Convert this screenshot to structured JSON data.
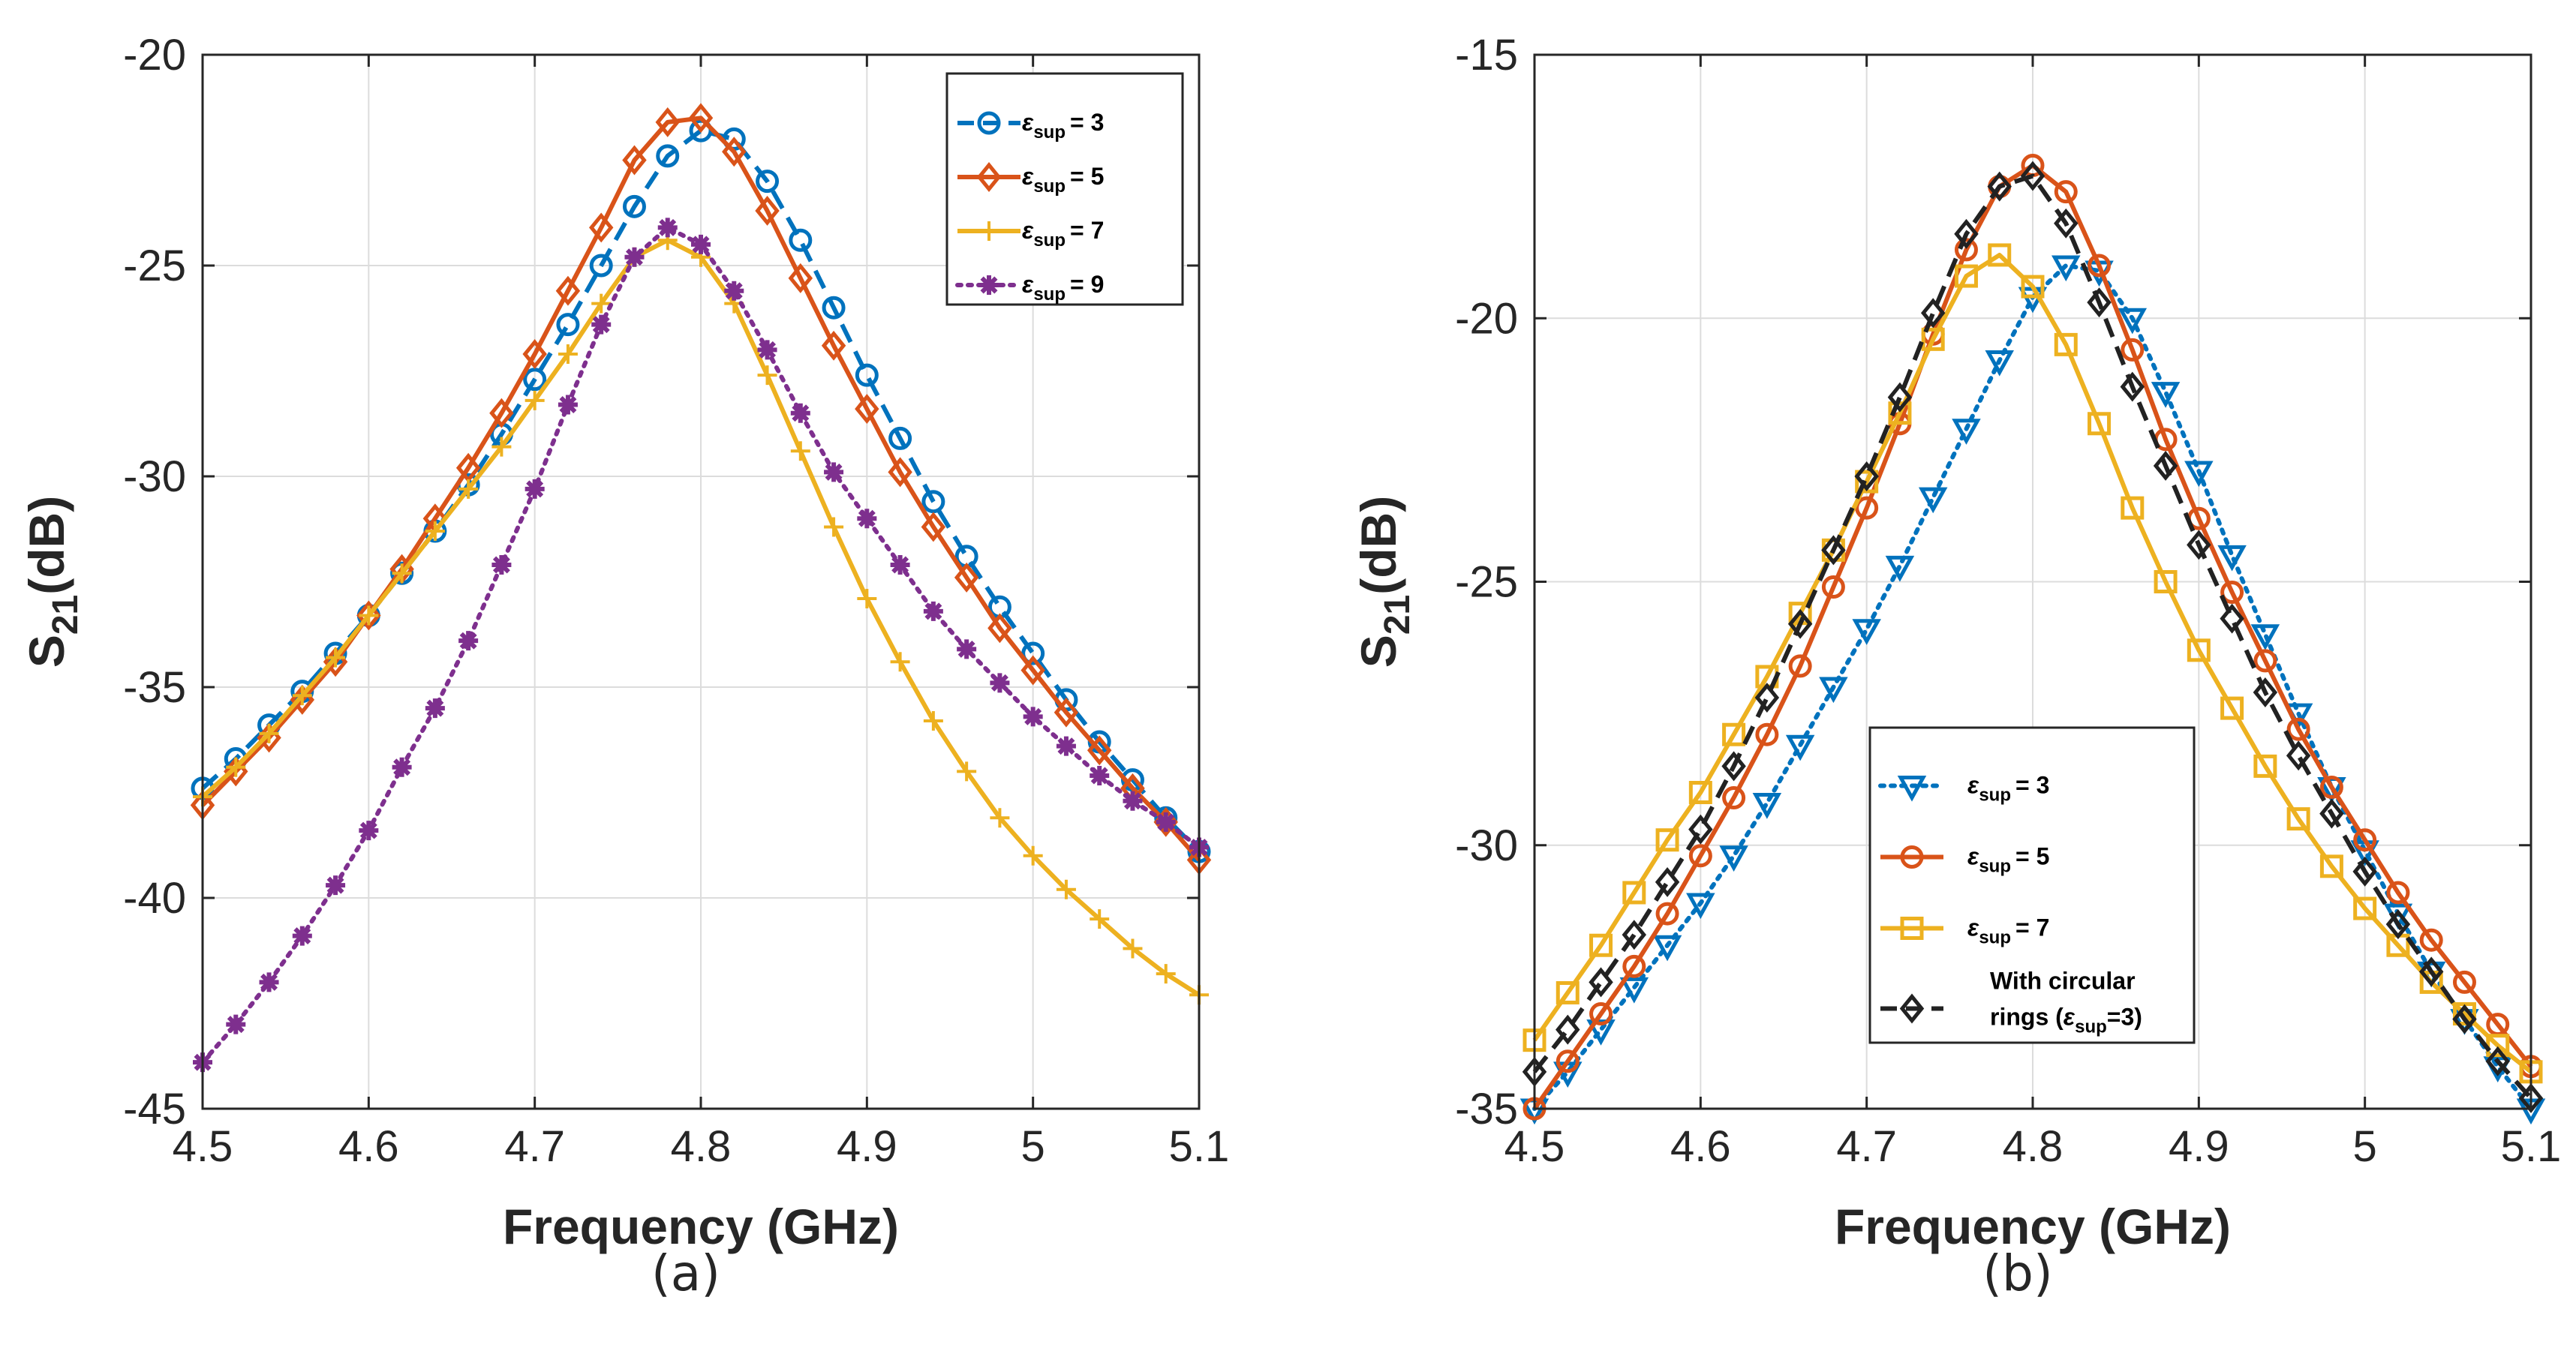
{
  "chart_data": [
    {
      "type": "line",
      "caption": "(a)",
      "xlabel": "Frequency (GHz)",
      "ylabel": "S21(dB)",
      "ylabel_main": "S",
      "ylabel_sub": "21",
      "ylabel_unit": "(dB)",
      "xlim": [
        4.5,
        5.1
      ],
      "ylim": [
        -45,
        -20
      ],
      "xticks": [
        4.5,
        4.6,
        4.7,
        4.8,
        4.9,
        5,
        5.1
      ],
      "xtick_labels": [
        "4.5",
        "4.6",
        "4.7",
        "4.8",
        "4.9",
        "5",
        "5.1"
      ],
      "yticks": [
        -45,
        -40,
        -35,
        -30,
        -25,
        -20
      ],
      "ytick_labels": [
        "-45",
        "-40",
        "-35",
        "-30",
        "-25",
        "-20"
      ],
      "grid": true,
      "legend_position": "top-right",
      "x": [
        4.5,
        4.52,
        4.54,
        4.56,
        4.58,
        4.6,
        4.62,
        4.64,
        4.66,
        4.68,
        4.7,
        4.72,
        4.74,
        4.76,
        4.78,
        4.8,
        4.82,
        4.84,
        4.86,
        4.88,
        4.9,
        4.92,
        4.94,
        4.96,
        4.98,
        5.0,
        5.02,
        5.04,
        5.06,
        5.08,
        5.1
      ],
      "series": [
        {
          "name": "ε sup = 3",
          "legend_main": "ε",
          "legend_sub": "sup",
          "legend_rest": "= 3",
          "color": "#0072BD",
          "dash": "dashed",
          "marker": "circle",
          "values": [
            -37.4,
            -36.7,
            -35.9,
            -35.1,
            -34.2,
            -33.3,
            -32.3,
            -31.3,
            -30.2,
            -29.0,
            -27.7,
            -26.4,
            -25.0,
            -23.6,
            -22.4,
            -21.8,
            -22.0,
            -23.0,
            -24.4,
            -26.0,
            -27.6,
            -29.1,
            -30.6,
            -31.9,
            -33.1,
            -34.2,
            -35.3,
            -36.3,
            -37.2,
            -38.1,
            -38.9
          ]
        },
        {
          "name": "ε sup = 5",
          "legend_main": "ε",
          "legend_sub": "sup",
          "legend_rest": "= 5",
          "color": "#D95319",
          "dash": "solid",
          "marker": "diamond",
          "values": [
            -37.8,
            -37.0,
            -36.2,
            -35.3,
            -34.4,
            -33.3,
            -32.2,
            -31.0,
            -29.8,
            -28.5,
            -27.1,
            -25.6,
            -24.1,
            -22.5,
            -21.6,
            -21.5,
            -22.3,
            -23.7,
            -25.3,
            -26.9,
            -28.4,
            -29.9,
            -31.2,
            -32.4,
            -33.6,
            -34.6,
            -35.6,
            -36.5,
            -37.4,
            -38.2,
            -39.1
          ]
        },
        {
          "name": "ε sup = 7",
          "legend_main": "ε",
          "legend_sub": "sup",
          "legend_rest": "= 7",
          "color": "#EDB120",
          "dash": "solid",
          "marker": "plus",
          "values": [
            -37.6,
            -36.9,
            -36.1,
            -35.2,
            -34.3,
            -33.3,
            -32.3,
            -31.3,
            -30.3,
            -29.3,
            -28.2,
            -27.1,
            -25.9,
            -24.8,
            -24.4,
            -24.8,
            -25.9,
            -27.6,
            -29.4,
            -31.2,
            -32.9,
            -34.4,
            -35.8,
            -37.0,
            -38.1,
            -39.0,
            -39.8,
            -40.5,
            -41.2,
            -41.8,
            -42.3
          ]
        },
        {
          "name": "ε sup = 9",
          "legend_main": "ε",
          "legend_sub": "sup",
          "legend_rest": "= 9",
          "color": "#7E2F8E",
          "dash": "dotted",
          "marker": "asterisk",
          "values": [
            -43.9,
            -43.0,
            -42.0,
            -40.9,
            -39.7,
            -38.4,
            -36.9,
            -35.5,
            -33.9,
            -32.1,
            -30.3,
            -28.3,
            -26.4,
            -24.8,
            -24.1,
            -24.5,
            -25.6,
            -27.0,
            -28.5,
            -29.9,
            -31.0,
            -32.1,
            -33.2,
            -34.1,
            -34.9,
            -35.7,
            -36.4,
            -37.1,
            -37.7,
            -38.2,
            -38.8
          ]
        }
      ]
    },
    {
      "type": "line",
      "caption": "(b)",
      "xlabel": "Frequency (GHz)",
      "ylabel": "S21(dB)",
      "ylabel_main": "S",
      "ylabel_sub": "21",
      "ylabel_unit": "(dB)",
      "xlim": [
        4.5,
        5.1
      ],
      "ylim": [
        -35,
        -15
      ],
      "xticks": [
        4.5,
        4.6,
        4.7,
        4.8,
        4.9,
        5,
        5.1
      ],
      "xtick_labels": [
        "4.5",
        "4.6",
        "4.7",
        "4.8",
        "4.9",
        "5",
        "5.1"
      ],
      "yticks": [
        -35,
        -30,
        -25,
        -20,
        -15
      ],
      "ytick_labels": [
        "-35",
        "-30",
        "-25",
        "-20",
        "-15"
      ],
      "grid": true,
      "legend_position": "bottom-center",
      "x": [
        4.5,
        4.52,
        4.54,
        4.56,
        4.58,
        4.6,
        4.62,
        4.64,
        4.66,
        4.68,
        4.7,
        4.72,
        4.74,
        4.76,
        4.78,
        4.8,
        4.82,
        4.84,
        4.86,
        4.88,
        4.9,
        4.92,
        4.94,
        4.96,
        4.98,
        5.0,
        5.02,
        5.04,
        5.06,
        5.08,
        5.1
      ],
      "series": [
        {
          "name": "ε sup = 3",
          "legend_main": "ε",
          "legend_sub": "sup",
          "legend_rest": "= 3",
          "color": "#0072BD",
          "dash": "dotted",
          "marker": "triangle-down",
          "values": [
            -35.0,
            -34.3,
            -33.5,
            -32.7,
            -31.9,
            -31.1,
            -30.2,
            -29.2,
            -28.1,
            -27.0,
            -25.9,
            -24.7,
            -23.4,
            -22.1,
            -20.8,
            -19.6,
            -19.0,
            -19.1,
            -20.0,
            -21.4,
            -22.9,
            -24.5,
            -26.0,
            -27.5,
            -28.9,
            -30.1,
            -31.3,
            -32.4,
            -33.3,
            -34.2,
            -35.0
          ]
        },
        {
          "name": "ε sup = 5",
          "legend_main": "ε",
          "legend_sub": "sup",
          "legend_rest": "= 5",
          "color": "#D95319",
          "dash": "solid",
          "marker": "circle",
          "values": [
            -35.0,
            -34.1,
            -33.2,
            -32.3,
            -31.3,
            -30.2,
            -29.1,
            -27.9,
            -26.6,
            -25.1,
            -23.6,
            -22.0,
            -20.3,
            -18.7,
            -17.5,
            -17.1,
            -17.6,
            -19.0,
            -20.6,
            -22.3,
            -23.8,
            -25.2,
            -26.5,
            -27.8,
            -28.9,
            -29.9,
            -30.9,
            -31.8,
            -32.6,
            -33.4,
            -34.2
          ]
        },
        {
          "name": "ε sup = 7",
          "legend_main": "ε",
          "legend_sub": "sup",
          "legend_rest": "= 7",
          "color": "#EDB120",
          "dash": "solid",
          "marker": "square",
          "values": [
            -33.7,
            -32.8,
            -31.9,
            -30.9,
            -29.9,
            -29.0,
            -27.9,
            -26.8,
            -25.6,
            -24.4,
            -23.1,
            -21.8,
            -20.4,
            -19.2,
            -18.8,
            -19.4,
            -20.5,
            -22.0,
            -23.6,
            -25.0,
            -26.3,
            -27.4,
            -28.5,
            -29.5,
            -30.4,
            -31.2,
            -31.9,
            -32.6,
            -33.2,
            -33.8,
            -34.3
          ]
        },
        {
          "name": "With circular rings (ε sup=3)",
          "legend_line1": "With circular",
          "legend_line2_pre": "rings (",
          "legend_main": "ε",
          "legend_sub": "sup",
          "legend_rest": "=3)",
          "color": "#222222",
          "dash": "dashed",
          "marker": "diamond",
          "values": [
            -34.3,
            -33.5,
            -32.6,
            -31.7,
            -30.7,
            -29.7,
            -28.5,
            -27.2,
            -25.8,
            -24.4,
            -23.0,
            -21.5,
            -19.9,
            -18.4,
            -17.5,
            -17.3,
            -18.2,
            -19.7,
            -21.3,
            -22.8,
            -24.3,
            -25.7,
            -27.1,
            -28.3,
            -29.4,
            -30.5,
            -31.5,
            -32.4,
            -33.3,
            -34.1,
            -34.8
          ]
        }
      ]
    }
  ]
}
